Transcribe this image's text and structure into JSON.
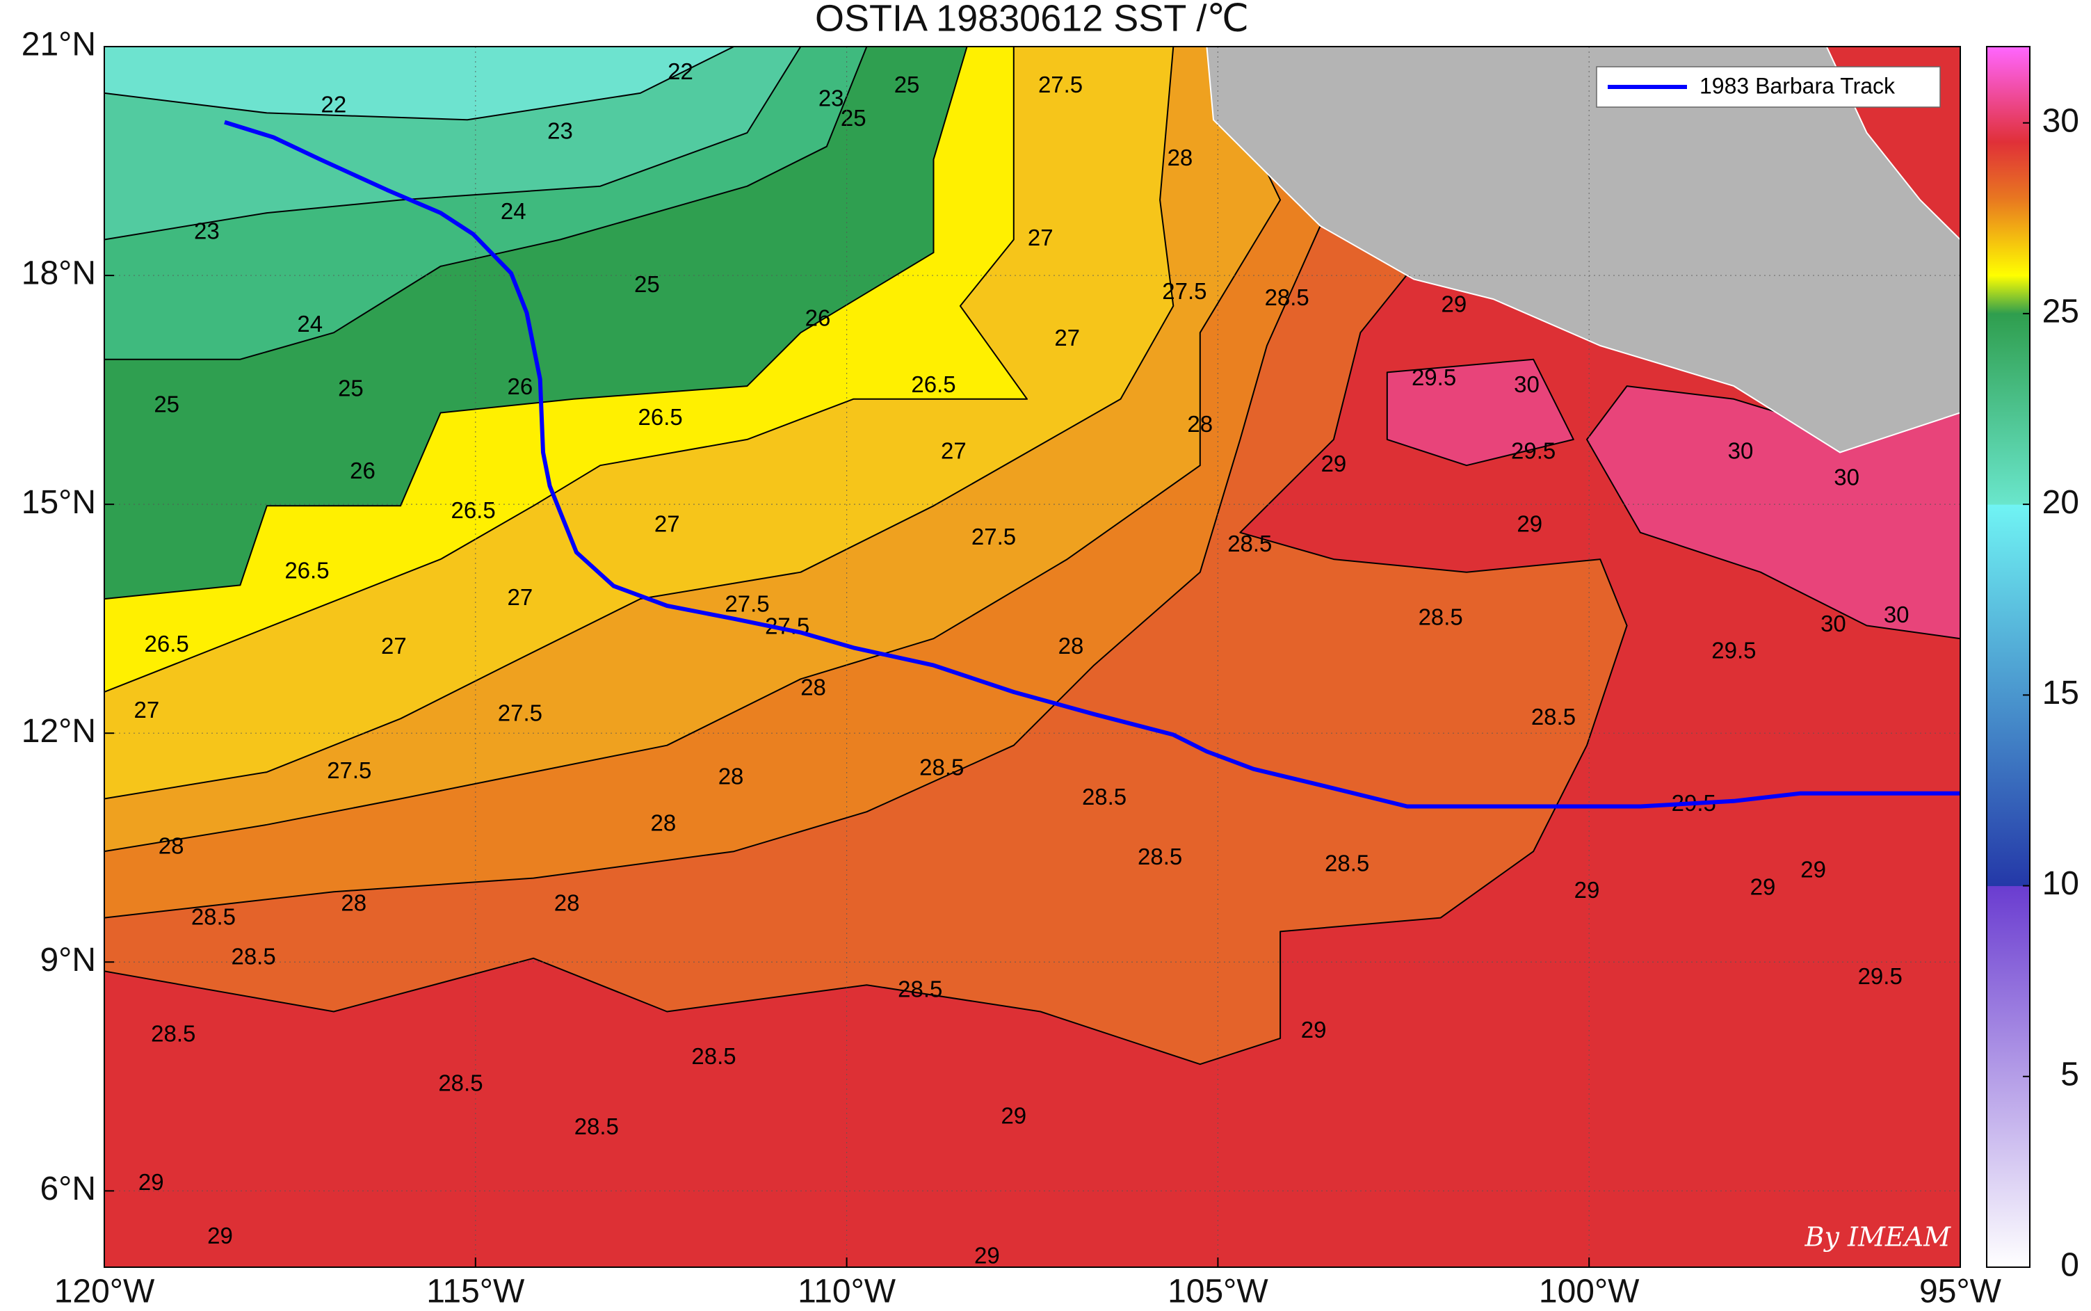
{
  "chart_data": {
    "type": "map",
    "title": "OSTIA 19830612 SST /℃",
    "xlim": [
      -120,
      -95
    ],
    "ylim": [
      5,
      21
    ],
    "xticks": [
      {
        "value": -120,
        "label": "120°W"
      },
      {
        "value": -115,
        "label": "115°W"
      },
      {
        "value": -110,
        "label": "110°W"
      },
      {
        "value": -105,
        "label": "105°W"
      },
      {
        "value": -100,
        "label": "100°W"
      },
      {
        "value": -95,
        "label": "95°W"
      }
    ],
    "yticks": [
      {
        "value": 6,
        "label": "6°N"
      },
      {
        "value": 9,
        "label": "9°N"
      },
      {
        "value": 12,
        "label": "12°N"
      },
      {
        "value": 15,
        "label": "15°N"
      },
      {
        "value": 18,
        "label": "18°N"
      },
      {
        "value": 21,
        "label": "21°N"
      }
    ],
    "grid": true,
    "zones": [
      {
        "level": 29,
        "color": "#dd3035",
        "polygon": [
          [
            -120,
            5
          ],
          [
            -95,
            5
          ],
          [
            -95,
            21
          ],
          [
            -120,
            21
          ]
        ]
      },
      {
        "level": 28.5,
        "color": "#e4632a",
        "polygon": [
          [
            -120,
            8.88
          ],
          [
            -116.91,
            8.35
          ],
          [
            -114.22,
            9.05
          ],
          [
            -112.42,
            8.35
          ],
          [
            -109.73,
            8.7
          ],
          [
            -107.39,
            8.35
          ],
          [
            -105.24,
            7.66
          ],
          [
            -104.16,
            8.0
          ],
          [
            -104.16,
            9.4
          ],
          [
            -102.0,
            9.58
          ],
          [
            -100.75,
            10.45
          ],
          [
            -100.03,
            11.84
          ],
          [
            -99.49,
            13.41
          ],
          [
            -99.85,
            14.28
          ],
          [
            -101.65,
            14.11
          ],
          [
            -103.44,
            14.28
          ],
          [
            -104.7,
            14.63
          ],
          [
            -103.44,
            15.85
          ],
          [
            -103.08,
            17.25
          ],
          [
            -102.36,
            18.12
          ],
          [
            -102.0,
            21
          ],
          [
            -120,
            21
          ]
        ]
      },
      {
        "level": 28,
        "color": "#ea8020",
        "polygon": [
          [
            -120,
            9.58
          ],
          [
            -116.91,
            9.92
          ],
          [
            -114.22,
            10.1
          ],
          [
            -111.52,
            10.45
          ],
          [
            -109.73,
            10.97
          ],
          [
            -107.75,
            11.84
          ],
          [
            -106.67,
            12.89
          ],
          [
            -105.24,
            14.11
          ],
          [
            -104.7,
            15.85
          ],
          [
            -104.34,
            17.08
          ],
          [
            -103.62,
            18.65
          ],
          [
            -104,
            21
          ],
          [
            -120,
            21
          ]
        ]
      },
      {
        "level": 27.5,
        "color": "#efa11f",
        "polygon": [
          [
            -105.15,
            21
          ],
          [
            -104.16,
            18.99
          ],
          [
            -105.24,
            17.25
          ],
          [
            -105.24,
            15.51
          ],
          [
            -107.03,
            14.28
          ],
          [
            -108.83,
            13.24
          ],
          [
            -110.62,
            12.71
          ],
          [
            -112.42,
            11.84
          ],
          [
            -114.22,
            11.49
          ],
          [
            -116.01,
            11.14
          ],
          [
            -117.81,
            10.8
          ],
          [
            -120,
            10.45
          ],
          [
            -120,
            21
          ]
        ]
      },
      {
        "level": 27,
        "color": "#f6c51a",
        "polygon": [
          [
            -105.6,
            21
          ],
          [
            -105.78,
            18.99
          ],
          [
            -105.6,
            17.6
          ],
          [
            -106.31,
            16.38
          ],
          [
            -108.83,
            14.98
          ],
          [
            -110.62,
            14.11
          ],
          [
            -112.78,
            13.76
          ],
          [
            -114.58,
            12.89
          ],
          [
            -116.01,
            12.19
          ],
          [
            -117.81,
            11.49
          ],
          [
            -120,
            11.14
          ],
          [
            -120,
            21
          ]
        ]
      },
      {
        "level": 26,
        "color": "#fff000",
        "polygon": [
          [
            -107.75,
            21
          ],
          [
            -107.75,
            18.47
          ],
          [
            -108.47,
            17.6
          ],
          [
            -107.57,
            16.38
          ],
          [
            -109.91,
            16.38
          ],
          [
            -111.34,
            15.85
          ],
          [
            -113.32,
            15.51
          ],
          [
            -114.22,
            14.98
          ],
          [
            -115.47,
            14.28
          ],
          [
            -117.27,
            13.59
          ],
          [
            -120,
            12.54
          ],
          [
            -120,
            21
          ]
        ]
      },
      {
        "level": 25,
        "color": "#2f9f50",
        "polygon": [
          [
            -108.38,
            21
          ],
          [
            -108.83,
            19.52
          ],
          [
            -108.83,
            18.3
          ],
          [
            -110.62,
            17.25
          ],
          [
            -111.34,
            16.55
          ],
          [
            -113.68,
            16.38
          ],
          [
            -115.47,
            16.2
          ],
          [
            -116.01,
            14.98
          ],
          [
            -117.81,
            14.98
          ],
          [
            -118.17,
            13.94
          ],
          [
            -120,
            13.76
          ],
          [
            -120,
            21
          ]
        ]
      },
      {
        "level": 24,
        "color": "#3fba7e",
        "polygon": [
          [
            -120,
            16.9
          ],
          [
            -118.17,
            16.9
          ],
          [
            -116.91,
            17.25
          ],
          [
            -115.47,
            18.12
          ],
          [
            -113.86,
            18.47
          ],
          [
            -111.34,
            19.17
          ],
          [
            -110.27,
            19.69
          ],
          [
            -109.73,
            21
          ],
          [
            -120,
            21
          ]
        ]
      },
      {
        "level": 23,
        "color": "#52cba0",
        "polygon": [
          [
            -120,
            18.47
          ],
          [
            -117.81,
            18.82
          ],
          [
            -116.01,
            18.99
          ],
          [
            -113.32,
            19.17
          ],
          [
            -111.34,
            19.87
          ],
          [
            -110.62,
            21
          ],
          [
            -120,
            21
          ]
        ]
      },
      {
        "level": 22,
        "color": "#6de3cf",
        "polygon": [
          [
            -120,
            20.39
          ],
          [
            -117.81,
            20.13
          ],
          [
            -115.11,
            20.04
          ],
          [
            -112.78,
            20.39
          ],
          [
            -111.52,
            21
          ],
          [
            -120,
            21
          ]
        ]
      },
      {
        "level": 30,
        "color": "#e8447a",
        "polygon": [
          [
            -99.49,
            16.55
          ],
          [
            -100.03,
            15.85
          ],
          [
            -99.31,
            14.63
          ],
          [
            -97.69,
            14.11
          ],
          [
            -96.26,
            13.41
          ],
          [
            -95,
            13.24
          ],
          [
            -95,
            16.38
          ],
          [
            -96.26,
            15.85
          ],
          [
            -98.05,
            16.38
          ]
        ]
      },
      {
        "level": 30,
        "color": "#e8447a",
        "polygon": [
          [
            -102.72,
            16.73
          ],
          [
            -100.75,
            16.9
          ],
          [
            -100.21,
            15.85
          ],
          [
            -101.65,
            15.51
          ],
          [
            -102.72,
            15.85
          ]
        ]
      }
    ],
    "land": {
      "color": "#b4b4b4",
      "polygon": [
        [
          -105.15,
          21
        ],
        [
          -105.06,
          20.04
        ],
        [
          -104.34,
          19.34
        ],
        [
          -103.62,
          18.65
        ],
        [
          -102.36,
          17.95
        ],
        [
          -101.29,
          17.69
        ],
        [
          -99.85,
          17.08
        ],
        [
          -98.05,
          16.55
        ],
        [
          -96.62,
          15.68
        ],
        [
          -95,
          16.2
        ],
        [
          -95,
          18.47
        ],
        [
          -95.54,
          18.99
        ],
        [
          -96.26,
          19.87
        ],
        [
          -96.8,
          21
        ]
      ]
    },
    "contour_labels": [
      {
        "lon": -116.91,
        "lat": 20.22,
        "value": 22
      },
      {
        "lon": -112.24,
        "lat": 20.65,
        "value": 22
      },
      {
        "lon": -113.86,
        "lat": 19.87,
        "value": 23
      },
      {
        "lon": -118.62,
        "lat": 18.56,
        "value": 23
      },
      {
        "lon": -114.49,
        "lat": 18.82,
        "value": 24
      },
      {
        "lon": -117.23,
        "lat": 17.34,
        "value": 24
      },
      {
        "lon": -112.69,
        "lat": 17.86,
        "value": 25
      },
      {
        "lon": -119.16,
        "lat": 16.29,
        "value": 25
      },
      {
        "lon": -116.68,
        "lat": 16.5,
        "value": 25
      },
      {
        "lon": -110.21,
        "lat": 20.3,
        "value": 23
      },
      {
        "lon": -109.91,
        "lat": 20.04,
        "value": 25
      },
      {
        "lon": -109.19,
        "lat": 20.48,
        "value": 25
      },
      {
        "lon": -110.39,
        "lat": 17.42,
        "value": 26
      },
      {
        "lon": -114.4,
        "lat": 16.52,
        "value": 26
      },
      {
        "lon": -116.52,
        "lat": 15.42,
        "value": 26
      },
      {
        "lon": -112.51,
        "lat": 16.12,
        "value": 26.5
      },
      {
        "lon": -108.83,
        "lat": 16.55,
        "value": 26.5
      },
      {
        "lon": -115.03,
        "lat": 14.9,
        "value": 26.5
      },
      {
        "lon": -119.16,
        "lat": 13.15,
        "value": 26.5
      },
      {
        "lon": -117.27,
        "lat": 14.11,
        "value": 26.5
      },
      {
        "lon": -108.56,
        "lat": 15.68,
        "value": 27
      },
      {
        "lon": -112.42,
        "lat": 14.72,
        "value": 27
      },
      {
        "lon": -114.4,
        "lat": 13.76,
        "value": 27
      },
      {
        "lon": -116.1,
        "lat": 13.12,
        "value": 27
      },
      {
        "lon": -119.43,
        "lat": 12.28,
        "value": 27
      },
      {
        "lon": -107.39,
        "lat": 18.47,
        "value": 27
      },
      {
        "lon": -107.03,
        "lat": 17.16,
        "value": 27
      },
      {
        "lon": -105.45,
        "lat": 17.77,
        "value": 27.5
      },
      {
        "lon": -107.12,
        "lat": 20.48,
        "value": 27.5
      },
      {
        "lon": -110.8,
        "lat": 13.38,
        "value": 27.5
      },
      {
        "lon": -114.4,
        "lat": 12.24,
        "value": 27.5
      },
      {
        "lon": -116.7,
        "lat": 11.49,
        "value": 27.5
      },
      {
        "lon": -108.02,
        "lat": 14.55,
        "value": 27.5
      },
      {
        "lon": -111.34,
        "lat": 13.67,
        "value": 27.5
      },
      {
        "lon": -110.45,
        "lat": 12.58,
        "value": 28
      },
      {
        "lon": -106.98,
        "lat": 13.12,
        "value": 28
      },
      {
        "lon": -105.24,
        "lat": 16.03,
        "value": 28
      },
      {
        "lon": -105.51,
        "lat": 19.52,
        "value": 28
      },
      {
        "lon": -111.56,
        "lat": 11.41,
        "value": 28
      },
      {
        "lon": -112.47,
        "lat": 10.8,
        "value": 28
      },
      {
        "lon": -113.77,
        "lat": 9.75,
        "value": 28
      },
      {
        "lon": -116.64,
        "lat": 9.75,
        "value": 28
      },
      {
        "lon": -119.1,
        "lat": 10.5,
        "value": 28
      },
      {
        "lon": -104.07,
        "lat": 17.69,
        "value": 28.5
      },
      {
        "lon": -104.57,
        "lat": 14.46,
        "value": 28.5
      },
      {
        "lon": -102.0,
        "lat": 13.5,
        "value": 28.5
      },
      {
        "lon": -106.53,
        "lat": 11.14,
        "value": 28.5
      },
      {
        "lon": -108.72,
        "lat": 11.53,
        "value": 28.5
      },
      {
        "lon": -103.26,
        "lat": 10.27,
        "value": 28.5
      },
      {
        "lon": -105.78,
        "lat": 10.36,
        "value": 28.5
      },
      {
        "lon": -118.53,
        "lat": 9.57,
        "value": 28.5
      },
      {
        "lon": -117.99,
        "lat": 9.05,
        "value": 28.5
      },
      {
        "lon": -109.01,
        "lat": 8.62,
        "value": 28.5
      },
      {
        "lon": -111.79,
        "lat": 7.74,
        "value": 28.5
      },
      {
        "lon": -115.2,
        "lat": 7.39,
        "value": 28.5
      },
      {
        "lon": -113.37,
        "lat": 6.82,
        "value": 28.5
      },
      {
        "lon": -119.07,
        "lat": 8.04,
        "value": 28.5
      },
      {
        "lon": -101.82,
        "lat": 17.6,
        "value": 29
      },
      {
        "lon": -103.44,
        "lat": 15.51,
        "value": 29
      },
      {
        "lon": -100.8,
        "lat": 14.72,
        "value": 29
      },
      {
        "lon": -103.71,
        "lat": 8.09,
        "value": 29
      },
      {
        "lon": -100.03,
        "lat": 9.92,
        "value": 29
      },
      {
        "lon": -107.75,
        "lat": 6.96,
        "value": 29
      },
      {
        "lon": -119.37,
        "lat": 6.09,
        "value": 29
      },
      {
        "lon": -118.44,
        "lat": 5.39,
        "value": 29
      },
      {
        "lon": -108.11,
        "lat": 5.13,
        "value": 29
      },
      {
        "lon": -102.09,
        "lat": 16.64,
        "value": 29.5
      },
      {
        "lon": -100.75,
        "lat": 15.68,
        "value": 29.5
      },
      {
        "lon": -98.05,
        "lat": 13.06,
        "value": 29.5
      },
      {
        "lon": -96.08,
        "lat": 8.79,
        "value": 29.5
      },
      {
        "lon": -100.84,
        "lat": 16.55,
        "value": 30
      },
      {
        "lon": -97.96,
        "lat": 15.68,
        "value": 30
      },
      {
        "lon": -96.53,
        "lat": 15.33,
        "value": 30
      },
      {
        "lon": -95.86,
        "lat": 13.53,
        "value": 30
      },
      {
        "lon": -96.71,
        "lat": 13.41,
        "value": 30
      },
      {
        "lon": -100.48,
        "lat": 12.19,
        "value": 28.5
      },
      {
        "lon": -98.59,
        "lat": 11.06,
        "value": 29.5
      },
      {
        "lon": -97.66,
        "lat": 9.96,
        "value": 29
      },
      {
        "lon": -96.98,
        "lat": 10.19,
        "value": 29
      }
    ],
    "track": {
      "name": "1983 Barbara Track",
      "color": "#0000ff",
      "lon": [
        -118.38,
        -117.72,
        -117.09,
        -116.19,
        -115.47,
        -115.03,
        -114.52,
        -114.31,
        -114.13,
        -114.09,
        -114.0,
        -113.64,
        -113.14,
        -112.42,
        -111.52,
        -110.62,
        -109.91,
        -108.83,
        -107.75,
        -106.67,
        -105.6,
        -105.15,
        -104.52,
        -103.62,
        -102.45,
        -99.31,
        -98.05,
        -97.16,
        -95.0
      ],
      "lat": [
        20.01,
        19.81,
        19.52,
        19.12,
        18.82,
        18.54,
        18.03,
        17.51,
        16.64,
        15.68,
        15.24,
        14.37,
        13.93,
        13.67,
        13.5,
        13.32,
        13.12,
        12.89,
        12.54,
        12.25,
        11.98,
        11.76,
        11.53,
        11.32,
        11.04,
        11.04,
        11.11,
        11.21,
        11.21
      ]
    },
    "legend": "upper right",
    "colorbar": {
      "lim": [
        0,
        32
      ],
      "ticks": [
        0,
        5,
        10,
        15,
        20,
        25,
        30
      ],
      "colormap": [
        [
          0,
          "#ffffff"
        ],
        [
          10,
          "#6a3cd0"
        ],
        [
          10,
          "#2438a8"
        ],
        [
          20,
          "#70f4f4"
        ],
        [
          20,
          "#6ae6cc"
        ],
        [
          25,
          "#2f9e4e"
        ],
        [
          26,
          "#ffff00"
        ],
        [
          28,
          "#e87820"
        ],
        [
          29.5,
          "#e03038"
        ],
        [
          32,
          "#ff66ff"
        ]
      ]
    },
    "watermark": "By IMEAM"
  }
}
